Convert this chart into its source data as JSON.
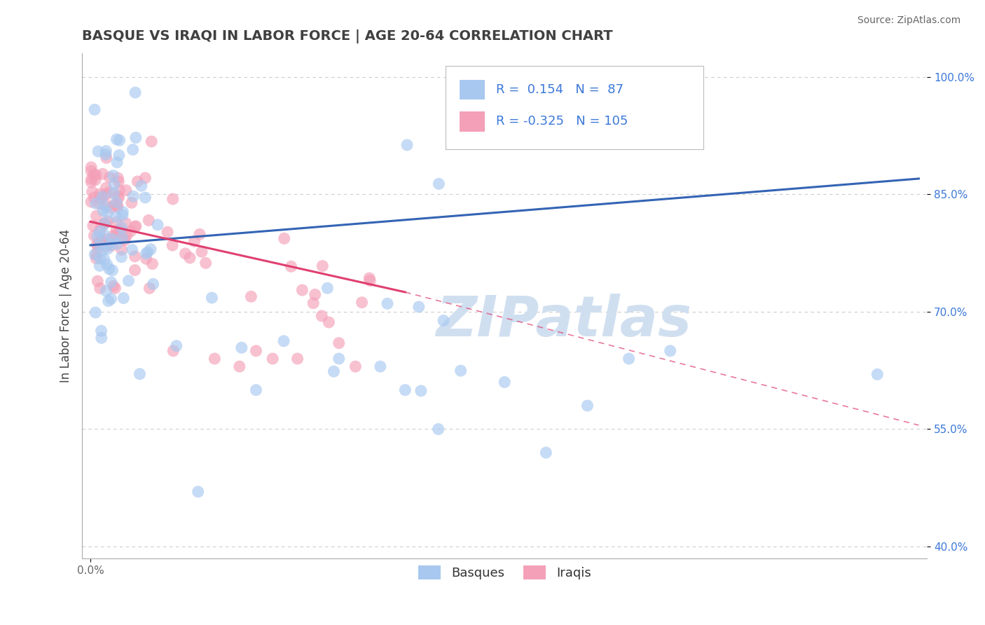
{
  "title": "BASQUE VS IRAQI IN LABOR FORCE | AGE 20-64 CORRELATION CHART",
  "source": "Source: ZipAtlas.com",
  "ylabel": "In Labor Force | Age 20-64",
  "blue_color": "#a8c8f0",
  "pink_color": "#f4a0b8",
  "blue_line_color": "#3464b4",
  "pink_line_color": "#e04070",
  "pink_dash_color": "#f0a0b8",
  "text_color": "#3c78d8",
  "title_color": "#404040",
  "watermark": "ZIPatlas",
  "watermark_color": "#d0dff0",
  "grid_color": "#cccccc",
  "r1": 0.154,
  "n1": 87,
  "r2": -0.325,
  "n2": 105,
  "xlim": [
    -0.01,
    1.01
  ],
  "ylim": [
    0.385,
    1.03
  ],
  "ytick_vals": [
    0.4,
    0.55,
    0.7,
    0.85,
    1.0
  ],
  "ytick_labels": [
    "40.0%",
    "55.0%",
    "70.0%",
    "85.0%",
    "100.0%"
  ],
  "blue_line": {
    "x0": 0.0,
    "x1": 1.0,
    "y0": 0.785,
    "y1": 0.87
  },
  "pink_line_solid": {
    "x0": 0.0,
    "x1": 0.38,
    "y0": 0.815,
    "y1": 0.725
  },
  "pink_line_dash": {
    "x0": 0.38,
    "x1": 1.0,
    "y0": 0.725,
    "y1": 0.555
  }
}
